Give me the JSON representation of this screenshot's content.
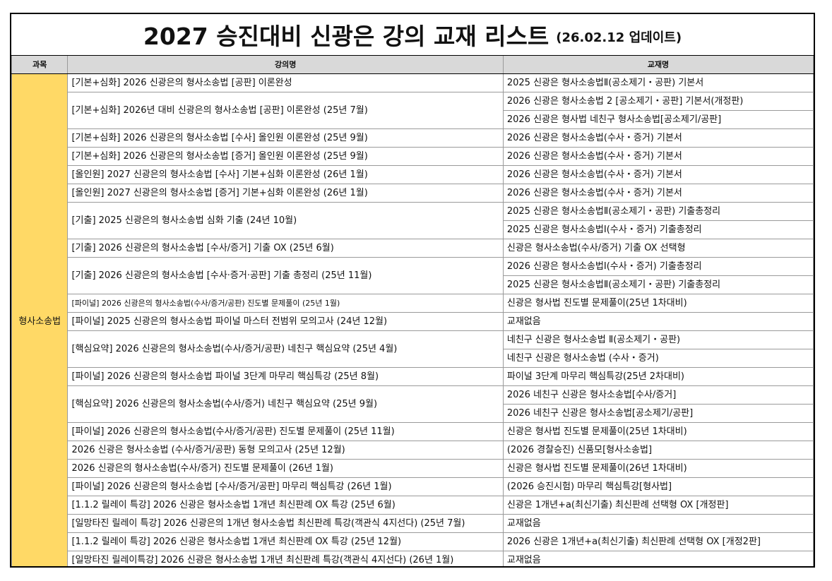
{
  "title": {
    "main": "2027 승진대비 신광은 강의 교재 리스트",
    "sub": "(26.02.12 업데이트)"
  },
  "headers": {
    "subject": "과목",
    "lecture": "강의명",
    "book": "교재명"
  },
  "subject": "형사소송법",
  "rows": [
    {
      "lecture": "[기본+심화] 2026 신광은의 형사소송법 [공판] 이론완성",
      "books": [
        "2025 신광은 형사소송법Ⅱ(공소제기・공판) 기본서"
      ]
    },
    {
      "lecture": "[기본+심화] 2026년 대비 신광은의 형사소송법 [공판] 이론완성 (25년 7월)",
      "books": [
        "2026 신광은 형사소송법 2 [공소제기・공판] 기본서(개정판)",
        "2026 신광은 형사법 네친구 형사소송법[공소제기/공판]"
      ]
    },
    {
      "lecture": "[기본+심화] 2026 신광은의 형사소송법 [수사] 올인원 이론완성 (25년 9월)",
      "books": [
        "2026 신광은 형사소송법(수사・증거) 기본서"
      ]
    },
    {
      "lecture": "[기본+심화] 2026 신광은의 형사소송법 [증거] 올인원 이론완성 (25년 9월)",
      "books": [
        "2026 신광은 형사소송법(수사・증거) 기본서"
      ]
    },
    {
      "lecture": "[올인원] 2027 신광은의 형사소송법 [수사] 기본+심화 이론완성 (26년 1월)",
      "books": [
        "2026 신광은 형사소송법(수사・증거) 기본서"
      ]
    },
    {
      "lecture": "[올인원] 2027 신광은의 형사소송법 [증거] 기본+심화 이론완성 (26년 1월)",
      "books": [
        "2026 신광은 형사소송법(수사・증거) 기본서"
      ]
    },
    {
      "lecture": "[기출] 2025 신광은의 형사소송법 심화 기출 (24년 10월)",
      "books": [
        "2025 신광은 형사소송법Ⅱ(공소제기・공판) 기출총정리",
        "2025 신광은 형사소송법Ⅰ(수사・증거) 기출총정리"
      ]
    },
    {
      "lecture": "[기출] 2026 신광은의 형사소송법 [수사/증거] 기출 OX (25년 6월)",
      "books": [
        "신광은 형사소송법(수사/증거) 기출 OX 선택형"
      ]
    },
    {
      "lecture": "[기출] 2026 신광은의 형사소송법 [수사·증거·공판] 기출 총정리 (25년 11월)",
      "books": [
        "2026 신광은 형사소송법Ⅰ(수사・증거) 기출총정리",
        "2025 신광은 형사소송법Ⅱ(공소제기・공판) 기출총정리"
      ]
    },
    {
      "lecture": "[파이널] 2026 신광은의 형사소송법(수사/증거/공판) 진도별 문제풀이 (25년 1월)",
      "books": [
        "신광은 형사법 진도별 문제풀이(25년 1차대비)"
      ],
      "small": true
    },
    {
      "lecture": "[파이널] 2025 신광은의 형사소송법 파이널 마스터 전범위 모의고사 (24년 12월)",
      "books": [
        "교재없음"
      ]
    },
    {
      "lecture": "[핵심요약] 2026 신광은의 형사소송법(수사/증거/공판) 네친구 핵심요약 (25년 4월)",
      "books": [
        "네친구 신광은 형사소송법 Ⅱ(공소제기・공판)",
        "네친구 신광은 형사소송법 (수사・증거)"
      ]
    },
    {
      "lecture": "[파이널] 2026 신광은의 형사소송법 파이널 3단계 마무리 핵심특강 (25년 8월)",
      "books": [
        "파이널 3단계 마무리 핵심특강(25년 2차대비)"
      ]
    },
    {
      "lecture": "[핵심요약] 2026 신광은의 형사소송법(수사/증거) 네친구 핵심요약 (25년 9월)",
      "books": [
        "2026 네친구 신광은 형사소송법[수사/증거]",
        "2026 네친구 신광은 형사소송법[공소제기/공판]"
      ]
    },
    {
      "lecture": "[파이널] 2026 신광은의 형사소송법(수사/증거/공판) 진도별 문제풀이 (25년 11월)",
      "books": [
        "신광은 형사법 진도별 문제풀이(25년 1차대비)"
      ]
    },
    {
      "lecture": "2026 신광은 형사소송법 (수사/증거/공판) 동형 모의고사 (25년 12월)",
      "books": [
        "(2026 경찰승진) 신품모[형사소송법]"
      ]
    },
    {
      "lecture": "2026 신광은의 형사소송법(수사/증거) 진도별 문제풀이 (26년 1월)",
      "books": [
        "신광은 형사법 진도별 문제풀이(26년 1차대비)"
      ]
    },
    {
      "lecture": "[파이널] 2026 신광은의 형사소송법 [수사/증거/공판] 마무리 핵심특강 (26년 1월)",
      "books": [
        "(2026 승진시험) 마무리 핵심특강[형사법]"
      ]
    },
    {
      "lecture": "[1.1.2 릴레이 특강] 2026 신광은 형사소송법 1개년 최신판례 OX 특강 (25년 6월)",
      "books": [
        "신광은 1개년+a(최신기출) 최신판례 선택형 OX [개정판]"
      ]
    },
    {
      "lecture": "[일망타진 릴레이 특강] 2026 신광은의 1개년 형사소송법 최신판례 특강(객관식 4지선다) (25년 7월)",
      "books": [
        "교재없음"
      ]
    },
    {
      "lecture": "[1.1.2 릴레이 특강] 2026 신광은 형사소송법 1개년 최신판례 OX 특강 (25년 12월)",
      "books": [
        " 2026 신광은 1개년+a(최신기출) 최신판례 선택형 OX [개정2판]"
      ]
    },
    {
      "lecture": "[일망타진 릴레이특강] 2026 신광은 형사소송법 1개년 최신판례 특강(객관식 4지선다) (26년 1월)",
      "books": [
        "교재없음"
      ]
    }
  ]
}
